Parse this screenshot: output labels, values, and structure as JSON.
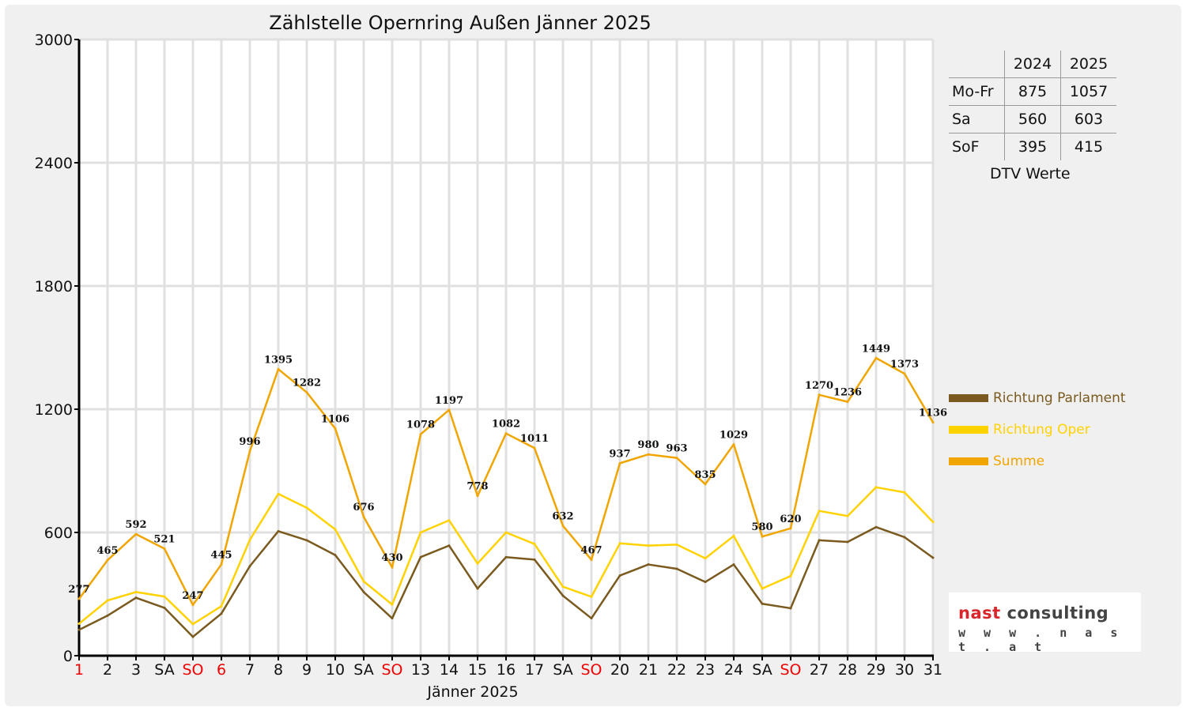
{
  "chart_data": {
    "type": "line",
    "title": "Zählstelle Opernring Außen Jänner 2025",
    "xlabel": "Jänner 2025",
    "ylabel": "",
    "ylim": [
      0,
      3000
    ],
    "yticks": [
      0,
      600,
      1200,
      1800,
      2400,
      3000
    ],
    "grid": true,
    "legend_position": "right",
    "categories": [
      "1",
      "2",
      "3",
      "SA",
      "SO",
      "6",
      "7",
      "8",
      "9",
      "10",
      "SA",
      "SO",
      "13",
      "14",
      "15",
      "16",
      "17",
      "SA",
      "SO",
      "20",
      "21",
      "22",
      "23",
      "24",
      "SA",
      "SO",
      "27",
      "28",
      "29",
      "30",
      "31"
    ],
    "red_categories": [
      0,
      4,
      5,
      11,
      18,
      25
    ],
    "series": [
      {
        "name": "Richtung Parlament",
        "color": "#7a5a1e",
        "values": [
          126,
          195,
          282,
          233,
          92,
          205,
          436,
          606,
          562,
          490,
          310,
          182,
          480,
          536,
          327,
          480,
          468,
          292,
          182,
          390,
          444,
          423,
          359,
          444,
          253,
          231,
          562,
          554,
          626,
          577,
          477
        ]
      },
      {
        "name": "Richtung Oper",
        "color": "#ffd200",
        "values": [
          156,
          269,
          310,
          288,
          154,
          241,
          564,
          788,
          720,
          615,
          362,
          249,
          600,
          659,
          449,
          600,
          544,
          336,
          287,
          547,
          536,
          541,
          474,
          583,
          327,
          388,
          705,
          680,
          820,
          795,
          651
        ]
      },
      {
        "name": "Summe",
        "color": "#f0a500",
        "labeled": true,
        "values": [
          277,
          465,
          592,
          521,
          247,
          445,
          996,
          1395,
          1282,
          1106,
          676,
          430,
          1078,
          1197,
          778,
          1082,
          1011,
          632,
          467,
          937,
          980,
          963,
          835,
          1029,
          580,
          620,
          1270,
          1236,
          1449,
          1373,
          1136
        ]
      }
    ]
  },
  "dtv_table": {
    "headers": [
      "",
      "2024",
      "2025"
    ],
    "rows": [
      {
        "label": "Mo-Fr",
        "v2024": "875",
        "v2025": "1057"
      },
      {
        "label": "Sa",
        "v2024": "560",
        "v2025": "603"
      },
      {
        "label": "SoF",
        "v2024": "395",
        "v2025": "415"
      }
    ],
    "caption": "DTV Werte"
  },
  "logo": {
    "text_red": "nast",
    "text_dark": " consulting",
    "url": "w w w . n a s t . a t"
  }
}
